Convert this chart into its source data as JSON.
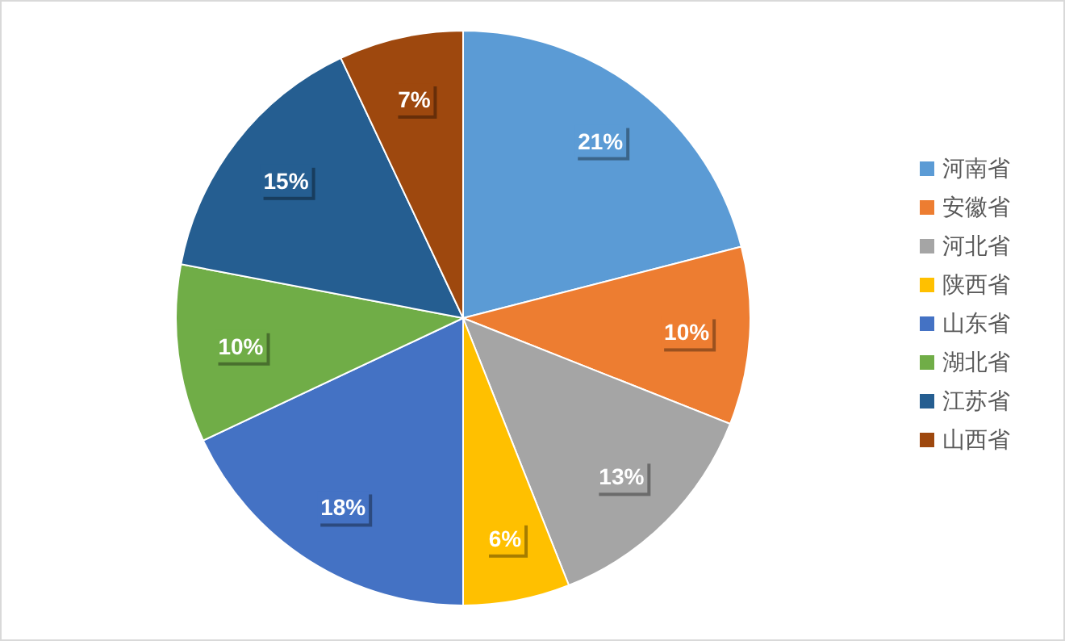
{
  "chart_data": {
    "type": "pie",
    "categories": [
      "河南省",
      "安徽省",
      "河北省",
      "陕西省",
      "山东省",
      "湖北省",
      "江苏省",
      "山西省"
    ],
    "values": [
      21,
      10,
      13,
      6,
      18,
      10,
      15,
      7
    ],
    "colors": [
      "#5b9bd5",
      "#ed7d31",
      "#a5a5a5",
      "#ffc000",
      "#4472c4",
      "#70ad47",
      "#255e91",
      "#9e480e"
    ],
    "value_labels": [
      "21%",
      "10%",
      "13%",
      "6%",
      "18%",
      "10%",
      "15%",
      "7%"
    ],
    "legend": "right"
  }
}
